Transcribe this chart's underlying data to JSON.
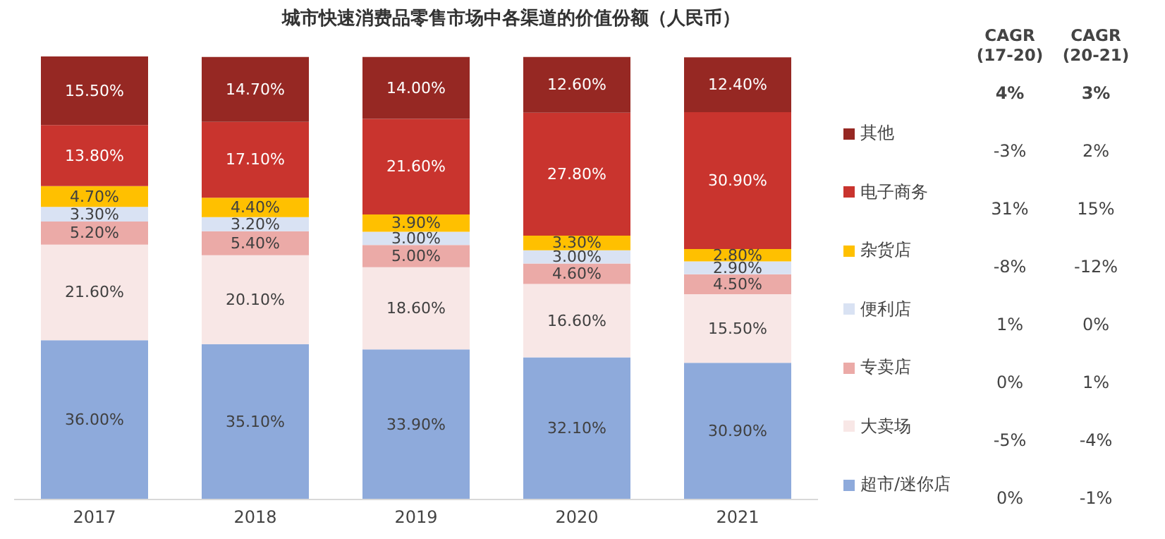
{
  "chart_data": {
    "type": "bar",
    "stacked": true,
    "title": "城市快速消费品零售市场中各渠道的价值份额（人民币）",
    "categories": [
      "2017",
      "2018",
      "2019",
      "2020",
      "2021"
    ],
    "series": [
      {
        "name": "超市/迷你店",
        "color": "#8eaadb",
        "values": [
          36.0,
          35.1,
          33.9,
          32.1,
          30.9
        ],
        "value_labels": [
          "36.00%",
          "35.10%",
          "33.90%",
          "32.10%",
          "30.90%"
        ]
      },
      {
        "name": "大卖场",
        "color": "#f8e7e6",
        "values": [
          21.6,
          20.1,
          18.6,
          16.6,
          15.5
        ],
        "value_labels": [
          "21.60%",
          "20.10%",
          "18.60%",
          "16.60%",
          "15.50%"
        ]
      },
      {
        "name": "专卖店",
        "color": "#ebaaa7",
        "values": [
          5.2,
          5.4,
          5.0,
          4.6,
          4.5
        ],
        "value_labels": [
          "5.20%",
          "5.40%",
          "5.00%",
          "4.60%",
          "4.50%"
        ]
      },
      {
        "name": "便利店",
        "color": "#d9e2f3",
        "values": [
          3.3,
          3.2,
          3.0,
          3.0,
          2.9
        ],
        "value_labels": [
          "3.30%",
          "3.20%",
          "3.00%",
          "3.00%",
          "2.90%"
        ]
      },
      {
        "name": "杂货店",
        "color": "#ffc000",
        "values": [
          4.7,
          4.4,
          3.9,
          3.3,
          2.8
        ],
        "value_labels": [
          "4.70%",
          "4.40%",
          "3.90%",
          "3.30%",
          "2.80%"
        ]
      },
      {
        "name": "电子商务",
        "color": "#c9342e",
        "values": [
          13.8,
          17.1,
          21.6,
          27.8,
          30.9
        ],
        "value_labels": [
          "13.80%",
          "17.10%",
          "21.60%",
          "27.80%",
          "30.90%"
        ]
      },
      {
        "name": "其他",
        "color": "#962823",
        "values": [
          15.5,
          14.7,
          14.0,
          12.6,
          12.4
        ],
        "value_labels": [
          "15.50%",
          "14.70%",
          "14.00%",
          "12.60%",
          "12.40%"
        ]
      }
    ],
    "legend": "right",
    "annotations": [
      "CAGR (17-20)",
      "CAGR (20-21)",
      "4%",
      "3%",
      "-3%",
      "2%",
      "31%",
      "15%",
      "-8%",
      "-12%",
      "1%",
      "0%",
      "0%",
      "1%",
      "-5%",
      "-4%",
      "0%",
      "-1%"
    ]
  }
}
